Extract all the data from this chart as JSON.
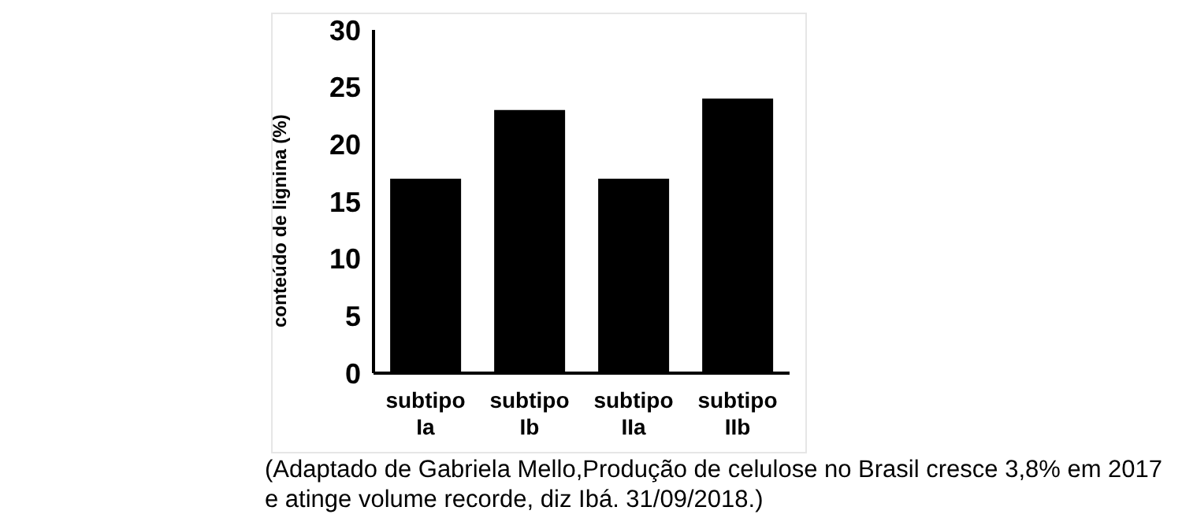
{
  "chart_data": {
    "type": "bar",
    "ylabel": "conteúdo de lignina (%)",
    "categories": [
      "subtipo Ia",
      "subtipo Ib",
      "subtipo IIa",
      "subtipo IIb"
    ],
    "values": [
      17,
      23,
      17,
      24
    ],
    "color": "#000000",
    "ylim": [
      0,
      30
    ],
    "yticks": [
      0,
      5,
      10,
      15,
      20,
      25,
      30
    ],
    "grid": false,
    "legend": false,
    "annotations": [
      "(Adaptado de Gabriela Mello,Produção de celulose no Brasil cresce 3,8% em 2017 e atinge volume recorde, diz Ibá. 31/09/2018.)"
    ]
  }
}
